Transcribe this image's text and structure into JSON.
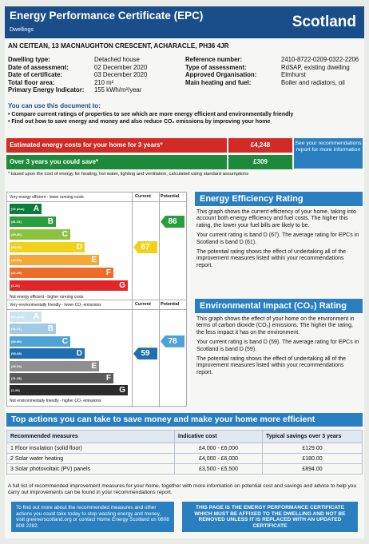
{
  "header": {
    "title": "Energy Performance Certificate (EPC)",
    "subtitle": "Dwellings",
    "country": "Scotland"
  },
  "address": "AN CEITEAN, 13 MACNAUGHTON CRESCENT, ACHARACLE, PH36 4JR",
  "details_left": [
    {
      "label": "Dwelling type:",
      "value": "Detached house"
    },
    {
      "label": "Date of assessment:",
      "value": "02 December 2020"
    },
    {
      "label": "Date of certificate:",
      "value": "03 December 2020"
    },
    {
      "label": "Total floor area:",
      "value": "210 m²"
    },
    {
      "label": "Primary Energy Indicator:",
      "value": "155 kWh/m²/year"
    }
  ],
  "details_right": [
    {
      "label": "Reference number:",
      "value": "2410-8722-0209-0322-2206"
    },
    {
      "label": "Type of assessment:",
      "value": "RdSAP, existing dwelling"
    },
    {
      "label": "Approved Organisation:",
      "value": "Elmhurst"
    },
    {
      "label": "Main heating and fuel:",
      "value": "Boiler and radiators, oil"
    }
  ],
  "use_heading": "You can use this document to:",
  "bullets": [
    "Compare current ratings of properties to see which are more energy efficient and environmentally friendly",
    "Find out how to save energy and money and also reduce CO₂ emissions by improving your home"
  ],
  "costs": {
    "estimated_label": "Estimated energy costs for your home for 3 years*",
    "estimated_value": "£4,248",
    "save_label": "Over 3 years you could save*",
    "save_value": "£309",
    "see_box": "See your recommendations report for more information",
    "based_note": "* based upon the cost of energy for heating, hot water, lighting and ventilation, calculated using standard assumptions"
  },
  "ee_chart": {
    "top_label": "Very energy efficient - lower running costs",
    "bottom_label": "Not energy efficient - higher running costs",
    "current_header": "Current",
    "potential_header": "Potential",
    "current": "67",
    "potential": "86",
    "bands": [
      {
        "range": "(92 plus)",
        "letter": "A",
        "color": "#0d7c3b"
      },
      {
        "range": "(81-91)",
        "letter": "B",
        "color": "#2a9d3f"
      },
      {
        "range": "(69-80)",
        "letter": "C",
        "color": "#8dc23f"
      },
      {
        "range": "(55-68)",
        "letter": "D",
        "color": "#f2d11c"
      },
      {
        "range": "(39-54)",
        "letter": "E",
        "color": "#f3a93a"
      },
      {
        "range": "(21-38)",
        "letter": "F",
        "color": "#ec6d2a"
      },
      {
        "range": "(1-20)",
        "letter": "G",
        "color": "#e1262a"
      }
    ]
  },
  "ei_chart": {
    "top_label": "Very environmentally friendly - lower CO₂ emissions",
    "bottom_label": "Not environmentally friendly - higher CO₂ emissions",
    "current_header": "Current",
    "potential_header": "Potential",
    "current": "59",
    "potential": "78",
    "bands": [
      {
        "range": "(92 plus)",
        "letter": "A",
        "color": "#cfe4f1"
      },
      {
        "range": "(81-91)",
        "letter": "B",
        "color": "#9fcbe4"
      },
      {
        "range": "(69-80)",
        "letter": "C",
        "color": "#4da3d3"
      },
      {
        "range": "(55-68)",
        "letter": "D",
        "color": "#1e6fad"
      },
      {
        "range": "(39-54)",
        "letter": "E",
        "color": "#8f8f8f"
      },
      {
        "range": "(21-38)",
        "letter": "F",
        "color": "#5a5a5a"
      },
      {
        "range": "(1-20)",
        "letter": "G",
        "color": "#2b2b2b"
      }
    ]
  },
  "ee_panel": {
    "title": "Energy Efficiency Rating",
    "p1": "This graph shows the current efficiency of your home, taking into account both energy efficiency and fuel costs. The higher this rating, the lower your fuel bills are likely to be.",
    "p2": "Your current rating is band D (67). The average rating for EPCs in Scotland is band D (61).",
    "p3": "The potential rating shows the effect of undertaking all of the improvement measures listed within your recommendations report."
  },
  "ei_panel": {
    "title": "Environmental Impact (CO₂) Rating",
    "p1": "This graph shows the effect of your home on the environment in terms of carbon dioxide (CO₂) emissions. The higher the rating, the less impact it has on the environment.",
    "p2": "Your current rating is band D (59). The average rating for EPCs in Scotland is band D (59).",
    "p3": "The potential rating shows the effect of undertaking all of the improvement measures listed within your recommendations report."
  },
  "actions": {
    "heading": "Top actions you can take to save money and make your home more efficient",
    "col_measures": "Recommended measures",
    "col_cost": "Indicative cost",
    "col_savings": "Typical savings over 3 years",
    "rows": [
      {
        "measure": "1 Floor insulation (solid floor)",
        "cost": "£4,000 - £6,000",
        "savings": "£129.00"
      },
      {
        "measure": "2 Solar water heating",
        "cost": "£4,000 - £6,000",
        "savings": "£180.00"
      },
      {
        "measure": "3 Solar photovoltaic (PV) panels",
        "cost": "£3,500 - £5,500",
        "savings": "£894.00"
      }
    ],
    "full_list": "A full list of recommended improvement measures for your home, together with more information on potential cost and savings and advice to help you carry out improvements can be found in your recommendations report."
  },
  "footer": {
    "left": "To find out more about the recommended measures and other actions you could take today to stop wasting energy and money, visit greenerscotland.org or contact Home Energy Scotland on 0808 808 2282.",
    "right": "THIS PAGE IS THE ENERGY PERFORMANCE CERTIFICATE WHICH MUST BE AFFIXED TO THE DWELLING AND NOT BE REMOVED UNLESS IT IS REPLACED WITH AN UPDATED CERTIFICATE"
  }
}
